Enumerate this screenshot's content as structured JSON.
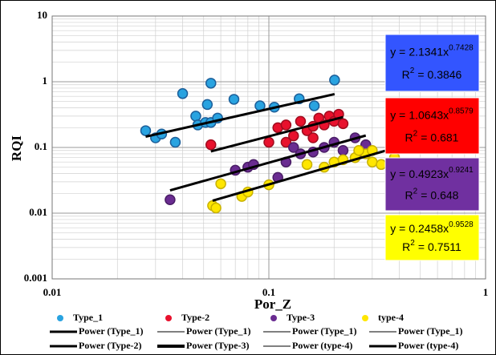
{
  "chart_data": {
    "type": "scatter",
    "x_label": "Por_Z",
    "y_label": "RQI",
    "log_x": true,
    "log_y": true,
    "grid": true,
    "minor_grid": true,
    "xlim": [
      0.01,
      1
    ],
    "xticks": [
      0.01,
      0.1,
      1
    ],
    "ylim": [
      0.001,
      10
    ],
    "yticks": [
      0.001,
      0.01,
      0.1,
      1,
      10
    ],
    "fit_labels": {
      "y": "y =",
      "x": "x",
      "r": "R",
      "square": "2",
      "equals": "="
    },
    "series": [
      {
        "name": "Type_1",
        "color": "#29a3e0",
        "edge": "#1c5f9a",
        "x": [
          0.027,
          0.03,
          0.032,
          0.037,
          0.04,
          0.046,
          0.047,
          0.051,
          0.052,
          0.054,
          0.054,
          0.058,
          0.069,
          0.091,
          0.106,
          0.138,
          0.162,
          0.201
        ],
        "values": [
          0.18,
          0.14,
          0.16,
          0.12,
          0.66,
          0.3,
          0.22,
          0.24,
          0.45,
          0.95,
          0.24,
          0.28,
          0.54,
          0.43,
          0.41,
          0.55,
          0.43,
          1.06
        ],
        "fit": {
          "coefficient": 2.1341,
          "exponent": 0.7428,
          "r2": 0.3846,
          "box_color": "#3355ff"
        }
      },
      {
        "name": "Type-2",
        "color": "#e8112d",
        "edge": "#a00c1e",
        "x": [
          0.054,
          0.1,
          0.11,
          0.12,
          0.13,
          0.14,
          0.15,
          0.16,
          0.17,
          0.18,
          0.19,
          0.2,
          0.21,
          0.22,
          0.12,
          0.16
        ],
        "values": [
          0.11,
          0.12,
          0.2,
          0.22,
          0.15,
          0.25,
          0.18,
          0.21,
          0.28,
          0.22,
          0.3,
          0.25,
          0.32,
          0.23,
          0.12,
          0.14
        ],
        "fit": {
          "coefficient": 1.0643,
          "exponent": 0.8579,
          "r2": 0.681,
          "box_color": "#ff0000"
        }
      },
      {
        "name": "Type-3",
        "color": "#6a2c91",
        "edge": "#4a1d66",
        "x": [
          0.035,
          0.07,
          0.08,
          0.085,
          0.11,
          0.12,
          0.13,
          0.14,
          0.16,
          0.18,
          0.2,
          0.22,
          0.25,
          0.28,
          0.26
        ],
        "values": [
          0.016,
          0.045,
          0.05,
          0.055,
          0.035,
          0.06,
          0.1,
          0.08,
          0.085,
          0.1,
          0.12,
          0.09,
          0.14,
          0.11,
          0.08
        ],
        "fit": {
          "coefficient": 0.4923,
          "exponent": 0.9241,
          "r2": 0.648,
          "box_color": "#7030a0"
        }
      },
      {
        "name": "type-4",
        "color": "#ffe600",
        "edge": "#c9b200",
        "x": [
          0.055,
          0.057,
          0.06,
          0.075,
          0.08,
          0.1,
          0.15,
          0.18,
          0.2,
          0.22,
          0.25,
          0.28,
          0.3,
          0.33,
          0.38,
          0.38,
          0.26,
          0.3
        ],
        "values": [
          0.013,
          0.012,
          0.028,
          0.018,
          0.021,
          0.027,
          0.055,
          0.05,
          0.06,
          0.065,
          0.07,
          0.08,
          0.06,
          0.055,
          0.07,
          0.05,
          0.09,
          0.09
        ],
        "fit": {
          "coefficient": 0.2458,
          "exponent": 0.9528,
          "r2": 0.7511,
          "box_color": "#ffff00"
        }
      }
    ],
    "trend_legend": [
      {
        "name": "Power (Type_1)",
        "width": 3
      },
      {
        "name": "Power (Type_1)",
        "width": 1
      },
      {
        "name": "Power (Type_1)",
        "width": 1
      },
      {
        "name": "Power (Type_1)",
        "width": 1
      },
      {
        "name": "Power (Type-2)",
        "width": 3
      },
      {
        "name": "Power (Type-3)",
        "width": 4
      },
      {
        "name": "Power (type-4)",
        "width": 1
      },
      {
        "name": "Power (type-4)",
        "width": 3
      }
    ]
  }
}
